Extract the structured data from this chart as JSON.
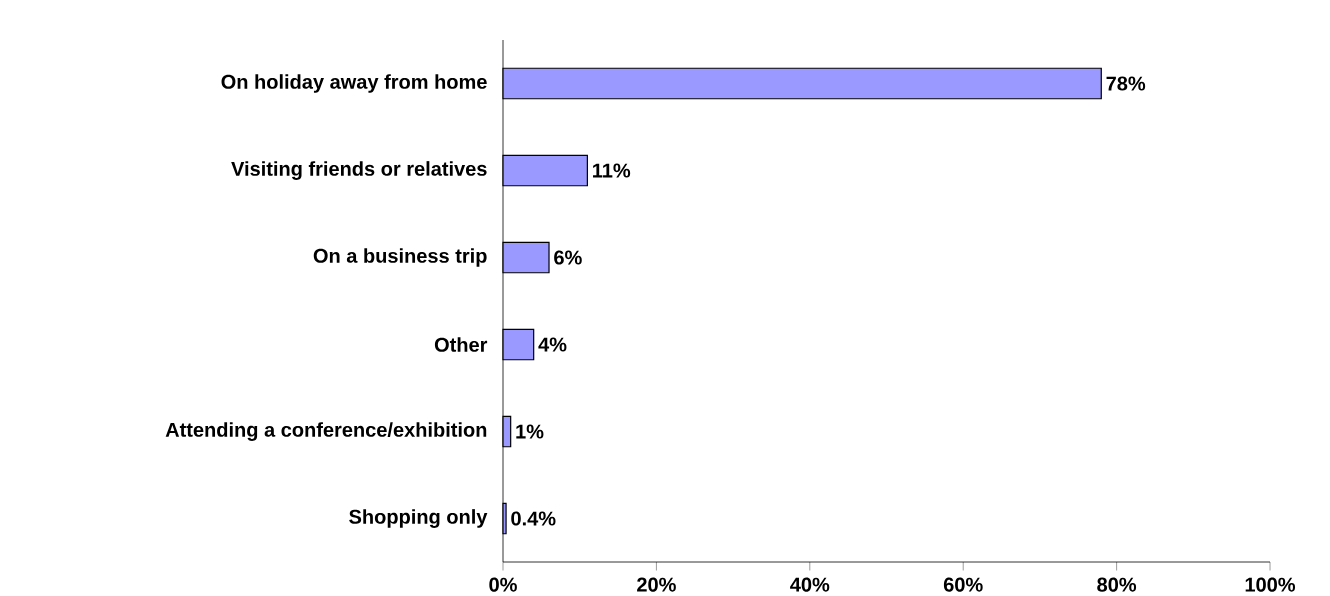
{
  "chart_data": {
    "type": "bar",
    "orientation": "horizontal",
    "categories": [
      "On holiday away from home",
      "Visiting friends or relatives",
      "On a business trip",
      "Other",
      "Attending a conference/exhibition",
      "Shopping only"
    ],
    "values": [
      78,
      11,
      6,
      4,
      1,
      0.4
    ],
    "value_labels": [
      "78%",
      "11%",
      "6%",
      "4%",
      "1%",
      "0.4%"
    ],
    "color": "#9999ff",
    "xlim": [
      0,
      100
    ],
    "xticks": [
      {
        "value": 0,
        "label": "0%"
      },
      {
        "value": 20,
        "label": "20%"
      },
      {
        "value": 40,
        "label": "40%"
      },
      {
        "value": 60,
        "label": "60%"
      },
      {
        "value": 80,
        "label": "80%"
      },
      {
        "value": 100,
        "label": "100%"
      }
    ]
  }
}
